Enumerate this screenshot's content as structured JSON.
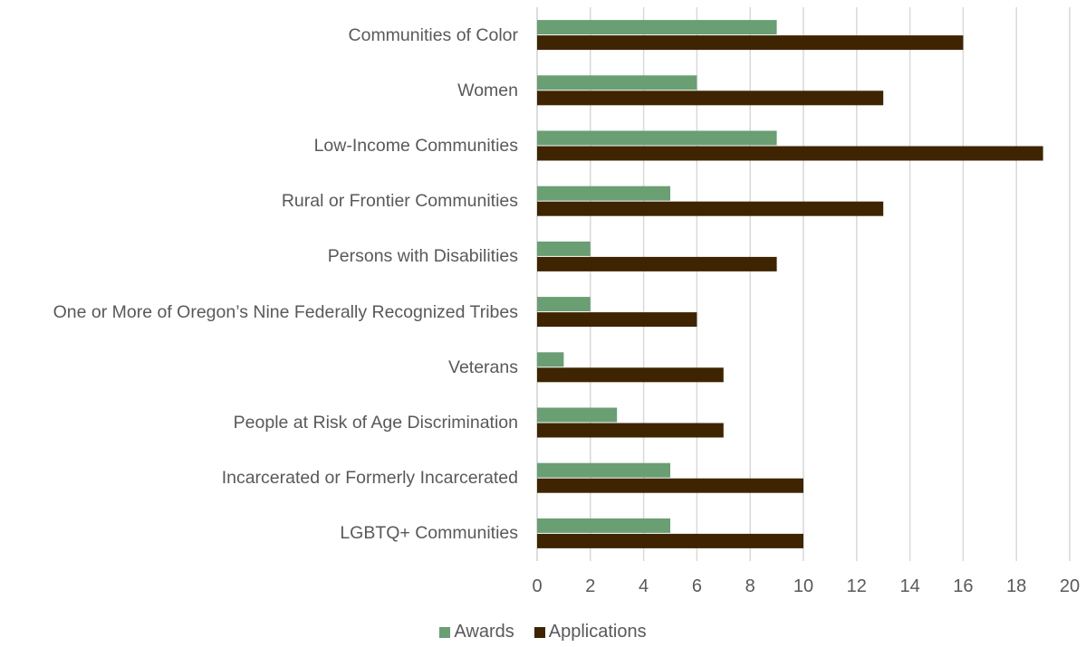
{
  "chart_data": {
    "type": "bar",
    "orientation": "horizontal",
    "title": "",
    "xlabel": "",
    "ylabel": "",
    "categories": [
      "Communities of Color",
      "Women",
      "Low-Income Communities",
      "Rural or Frontier Communities",
      "Persons with Disabilities",
      "One or More of Oregon’s Nine Federally Recognized Tribes",
      "Veterans",
      "People at Risk of Age Discrimination",
      "Incarcerated or Formerly Incarcerated",
      "LGBTQ+ Communities"
    ],
    "series": [
      {
        "name": "Awards",
        "color": "#6a9e73",
        "values": [
          9,
          6,
          9,
          5,
          2,
          2,
          1,
          3,
          5,
          5
        ]
      },
      {
        "name": "Applications",
        "color": "#3f2400",
        "values": [
          16,
          13,
          19,
          13,
          9,
          6,
          7,
          7,
          10,
          10
        ]
      }
    ],
    "xlim": [
      0,
      20
    ],
    "xticks": [
      "0",
      "2",
      "4",
      "6",
      "8",
      "10",
      "12",
      "14",
      "16",
      "18",
      "20"
    ],
    "grid": true,
    "legend_position": "bottom"
  }
}
